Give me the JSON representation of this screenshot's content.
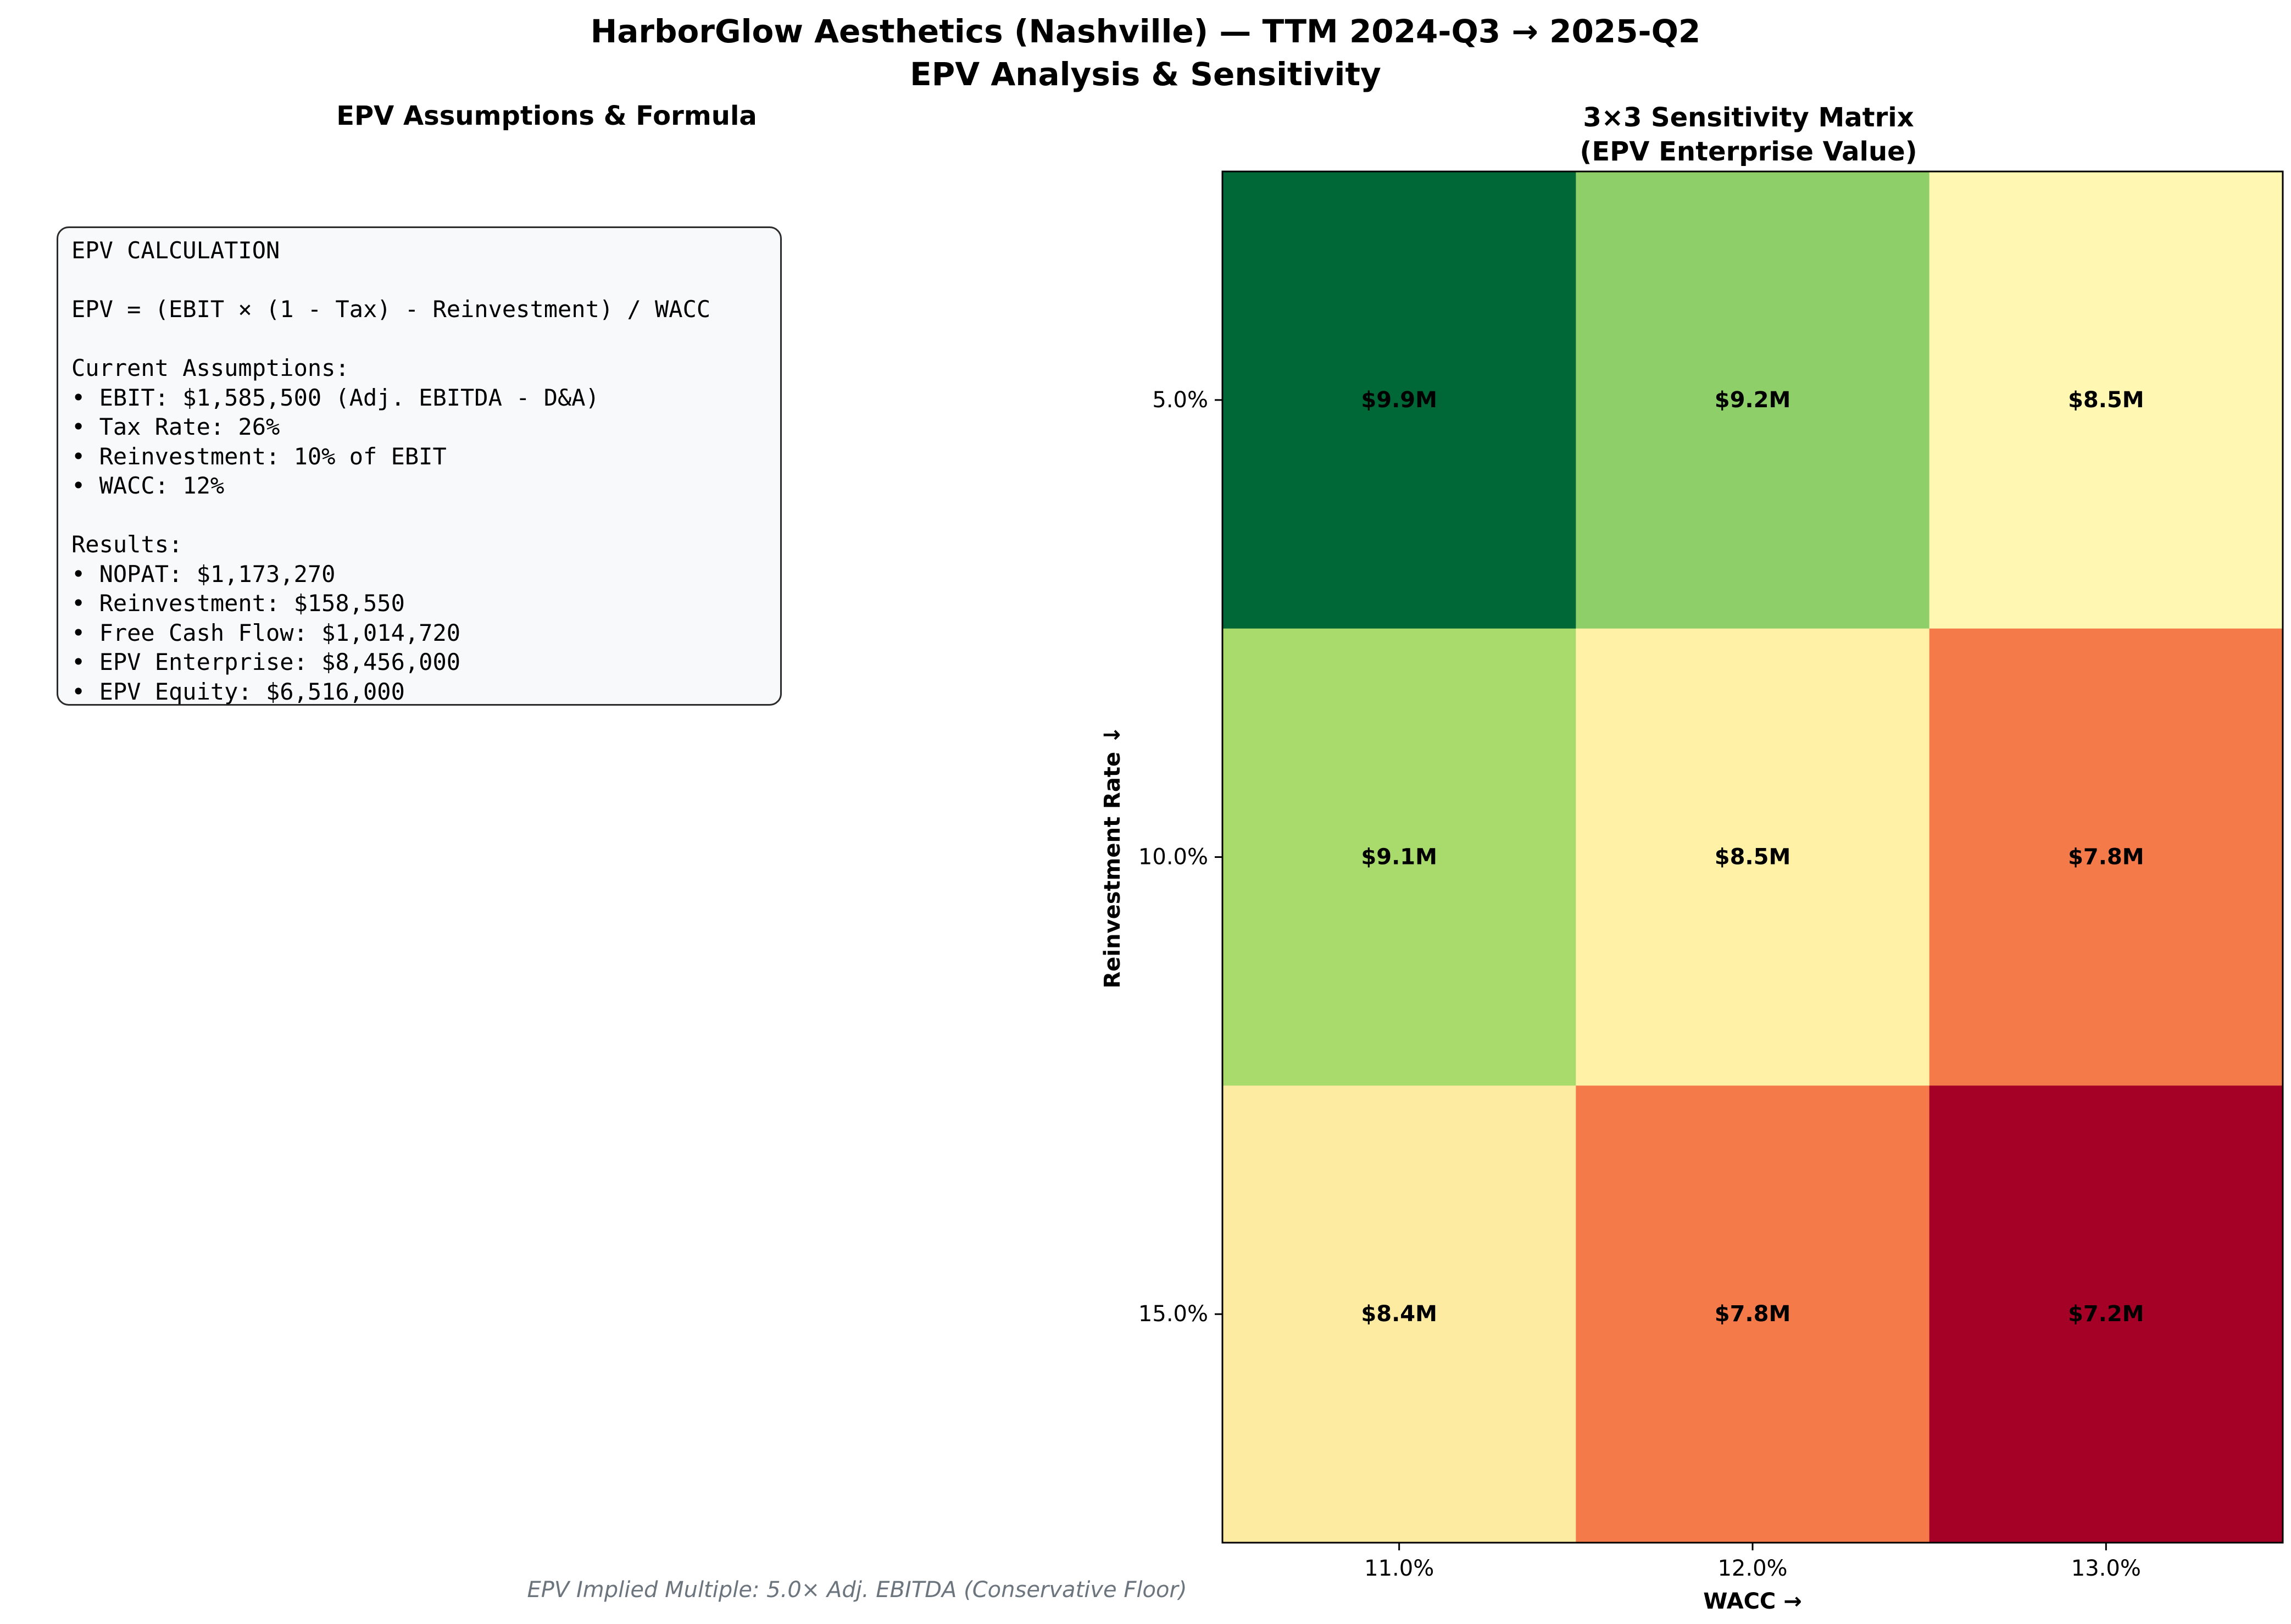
{
  "title_line1": "HarborGlow Aesthetics (Nashville) — TTM 2024-Q3 → 2025-Q2",
  "title_line2": "EPV Analysis & Sensitivity",
  "left_panel": {
    "title": "EPV Assumptions & Formula",
    "lines": [
      "EPV CALCULATION",
      "",
      "EPV = (EBIT × (1 - Tax) - Reinvestment) / WACC",
      "",
      "Current Assumptions:",
      "• EBIT: $1,585,500 (Adj. EBITDA - D&A)",
      "• Tax Rate: 26%",
      "• Reinvestment: 10% of EBIT",
      "• WACC: 12%",
      "",
      "Results:",
      "• NOPAT: $1,173,270",
      "• Reinvestment: $158,550",
      "• Free Cash Flow: $1,014,720",
      "• EPV Enterprise: $8,456,000",
      "• EPV Equity: $6,516,000"
    ]
  },
  "chart_data": {
    "type": "heatmap",
    "title_line1": "3×3 Sensitivity Matrix",
    "title_line2": "(EPV Enterprise Value)",
    "xlabel": "WACC →",
    "ylabel": "Reinvestment Rate ↓",
    "x": [
      "11.0%",
      "12.0%",
      "13.0%"
    ],
    "y": [
      "5.0%",
      "10.0%",
      "15.0%"
    ],
    "values": [
      [
        9.9,
        9.2,
        8.5
      ],
      [
        9.1,
        8.5,
        7.8
      ],
      [
        8.4,
        7.8,
        7.2
      ]
    ],
    "labels": [
      [
        "$9.9M",
        "$9.2M",
        "$8.5M"
      ],
      [
        "$9.1M",
        "$8.5M",
        "$7.8M"
      ],
      [
        "$8.4M",
        "$7.8M",
        "$7.2M"
      ]
    ],
    "colormap": "RdYlGn",
    "cell_colors": [
      [
        "#006837",
        "#8fcf69",
        "#fff7b2"
      ],
      [
        "#a9da6c",
        "#fff1a6",
        "#f57a4a"
      ],
      [
        "#feeba2",
        "#f57a4a",
        "#a50026"
      ]
    ]
  },
  "footer": "EPV Implied Multiple: 5.0× Adj. EBITDA (Conservative Floor)"
}
